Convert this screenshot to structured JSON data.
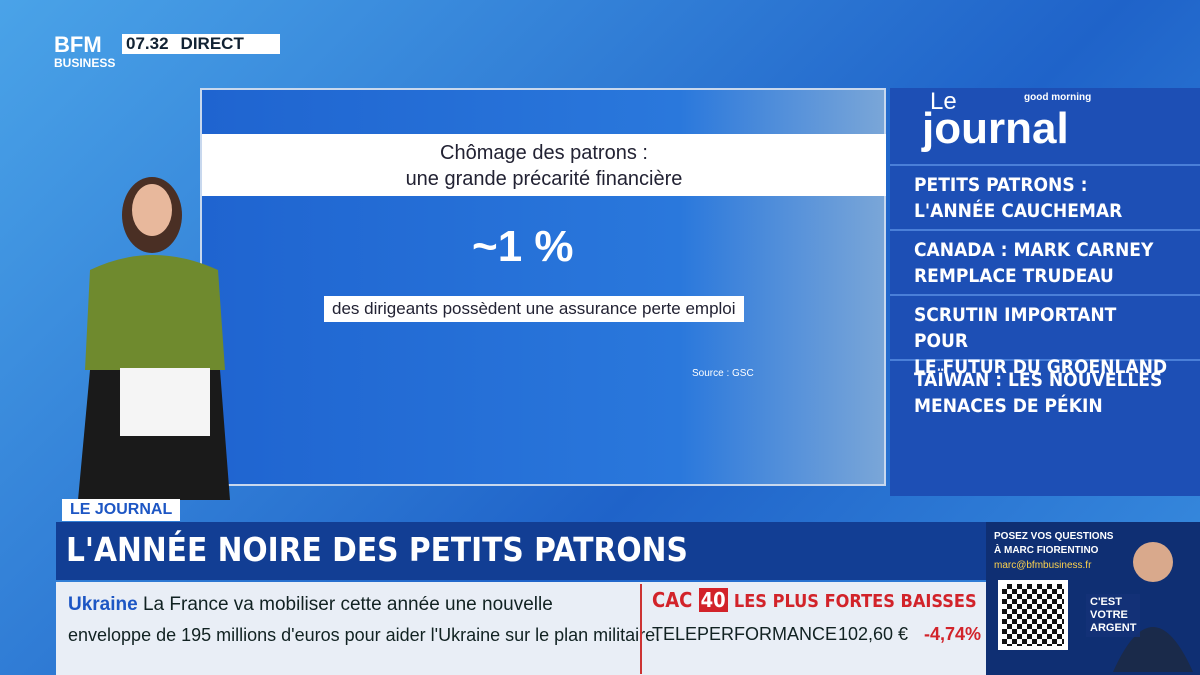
{
  "header": {
    "logo_top": "BFM",
    "logo_bottom": "BUSINESS",
    "time": "07.32",
    "live": "DIRECT"
  },
  "screen": {
    "title_lines": [
      "Chômage des patrons :",
      "une grande précarité financière"
    ],
    "stat": "~1 %",
    "caption": "des dirigeants possèdent une assurance perte emploi",
    "source": "Source : GSC"
  },
  "sidebar": {
    "show_small": "good morning",
    "show_le": "Le",
    "show_name": "journal",
    "headlines": [
      [
        "PETITS PATRONS :",
        "L'ANNÉE CAUCHEMAR"
      ],
      [
        "CANADA : MARK CARNEY",
        "REMPLACE TRUDEAU"
      ],
      [
        "SCRUTIN IMPORTANT POUR",
        "LE FUTUR DU GROENLAND"
      ],
      [
        "TAÏWAN : LES NOUVELLES",
        "MENACES DE PÉKIN"
      ]
    ]
  },
  "lower_third": {
    "tag": "LE JOURNAL",
    "headline": "L'ANNÉE NOIRE DES PETITS PATRONS"
  },
  "ticker": {
    "topic": "Ukraine",
    "text_lines": [
      "La France va mobiliser cette année une nouvelle",
      "enveloppe de 195 millions d'euros pour aider l'Ukraine sur le plan militaire."
    ]
  },
  "market": {
    "index": "CAC",
    "index_number": "40",
    "heading": "LES PLUS FORTES BAISSES",
    "stock": "TELEPERFORMANCE",
    "price": "102,60 €",
    "change": "-4,74%"
  },
  "promo": {
    "lines": [
      "POSEZ VOS QUESTIONS",
      "À MARC FIORENTINO"
    ],
    "email": "marc@bfmbusiness.fr",
    "show_lines": [
      "C'EST",
      "VOTRE",
      "ARGENT"
    ]
  }
}
